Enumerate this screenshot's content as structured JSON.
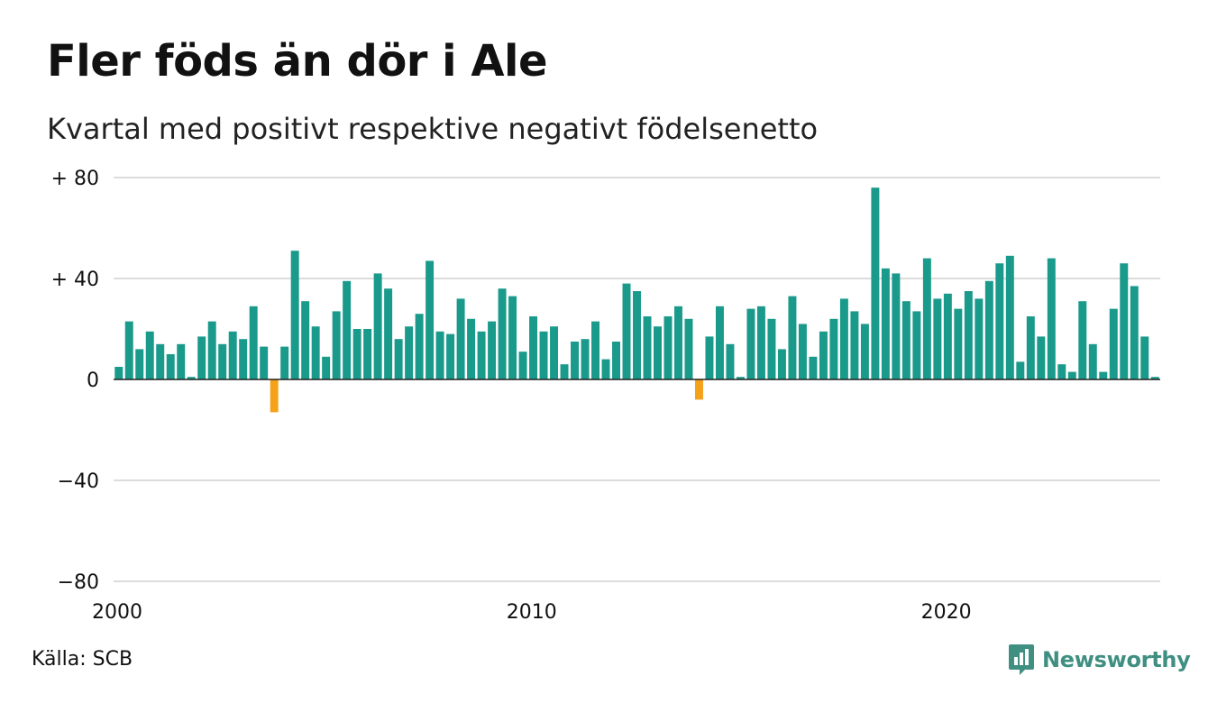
{
  "title": "Fler föds än dör i Ale",
  "subtitle": "Kvartal med positivt respektive negativt födelsenetto",
  "source": "Källa: SCB",
  "brand": "Newsworthy",
  "colors": {
    "positive": "#1a9a8b",
    "negative": "#f5a21b",
    "grid": "#dcdcdc",
    "brand": "#3f8f82"
  },
  "chart_data": {
    "type": "bar",
    "x_start": "2000 Q1",
    "frequency": "quarterly",
    "values": [
      5,
      23,
      12,
      19,
      14,
      10,
      14,
      1,
      17,
      23,
      14,
      19,
      16,
      29,
      13,
      -13,
      13,
      51,
      31,
      21,
      9,
      27,
      39,
      20,
      20,
      42,
      36,
      16,
      21,
      26,
      47,
      19,
      18,
      32,
      24,
      19,
      23,
      36,
      33,
      11,
      25,
      19,
      21,
      6,
      15,
      16,
      23,
      8,
      15,
      38,
      35,
      25,
      21,
      25,
      29,
      24,
      -8,
      17,
      29,
      14,
      1,
      28,
      29,
      24,
      12,
      33,
      22,
      9,
      19,
      24,
      32,
      27,
      22,
      76,
      44,
      42,
      31,
      27,
      48,
      32,
      34,
      28,
      35,
      32,
      39,
      46,
      49,
      7,
      25,
      17,
      48,
      6,
      3,
      31,
      14,
      3,
      28,
      46,
      37,
      17,
      1
    ],
    "ylim": [
      -80,
      80
    ],
    "y_ticks": [
      {
        "value": 80,
        "label": "+ 80"
      },
      {
        "value": 40,
        "label": "+ 40"
      },
      {
        "value": 0,
        "label": "0"
      },
      {
        "value": -40,
        "label": "−40"
      },
      {
        "value": -80,
        "label": "−80"
      }
    ],
    "x_ticks": [
      {
        "year": 2000,
        "label": "2000"
      },
      {
        "year": 2010,
        "label": "2010"
      },
      {
        "year": 2020,
        "label": "2020"
      }
    ],
    "grid": true,
    "legend": "none"
  }
}
